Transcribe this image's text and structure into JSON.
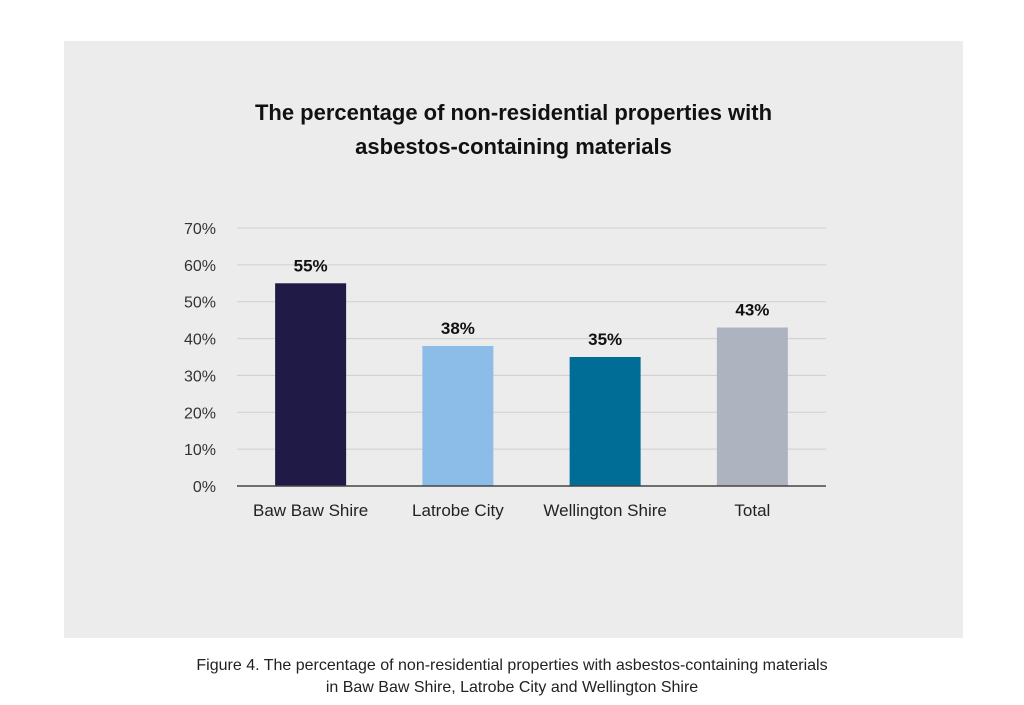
{
  "chart_data": {
    "type": "bar",
    "title_lines": [
      "The percentage of non-residential properties with",
      "asbestos-containing materials"
    ],
    "categories": [
      "Baw Baw Shire",
      "Latrobe City",
      "Wellington Shire",
      "Total"
    ],
    "values": [
      55,
      38,
      35,
      43
    ],
    "data_labels": [
      "55%",
      "38%",
      "35%",
      "43%"
    ],
    "colors": [
      "#201a47",
      "#8cbce8",
      "#006d97",
      "#adb3bf"
    ],
    "ylim": [
      0,
      70
    ],
    "yticks": [
      0,
      10,
      20,
      30,
      40,
      50,
      60,
      70
    ],
    "ytick_labels": [
      "0%",
      "10%",
      "20%",
      "30%",
      "40%",
      "50%",
      "60%",
      "70%"
    ],
    "grid": true,
    "xlabel": "",
    "ylabel": ""
  },
  "caption": {
    "line1": "Figure 4. The percentage of non-residential properties with asbestos-containing materials",
    "line2": "in Baw Baw Shire, Latrobe City and Wellington Shire"
  }
}
